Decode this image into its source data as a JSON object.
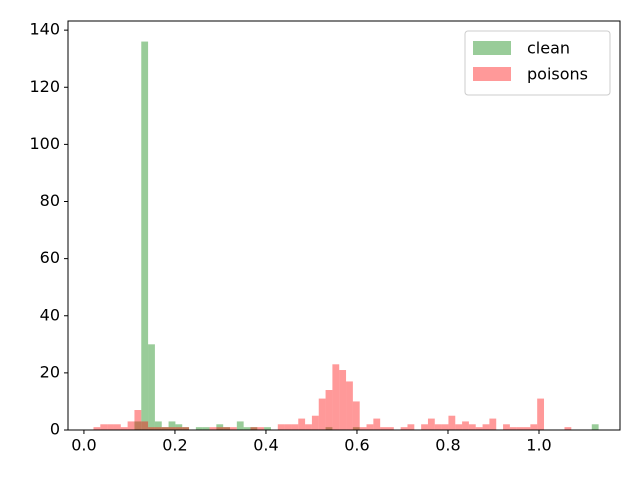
{
  "chart_data": {
    "type": "histogram",
    "bins": [
      0.021,
      0.036,
      0.051,
      0.066,
      0.081,
      0.096,
      0.111,
      0.126,
      0.141,
      0.156,
      0.171,
      0.186,
      0.201,
      0.216,
      0.231,
      0.246,
      0.261,
      0.276,
      0.291,
      0.306,
      0.321,
      0.336,
      0.351,
      0.366,
      0.381,
      0.396,
      0.411,
      0.426,
      0.441,
      0.456,
      0.471,
      0.486,
      0.501,
      0.516,
      0.531,
      0.546,
      0.561,
      0.576,
      0.591,
      0.606,
      0.621,
      0.636,
      0.651,
      0.666,
      0.681,
      0.696,
      0.711,
      0.726,
      0.741,
      0.756,
      0.771,
      0.786,
      0.801,
      0.816,
      0.831,
      0.846,
      0.861,
      0.876,
      0.891,
      0.906,
      0.921,
      0.936,
      0.951,
      0.966,
      0.981,
      0.996,
      1.011,
      1.026,
      1.041,
      1.056,
      1.071,
      1.086,
      1.101,
      1.116,
      1.131
    ],
    "series": [
      {
        "name": "clean",
        "color": "green",
        "alpha": 0.4,
        "values": [
          0,
          0,
          0,
          0,
          0,
          0,
          3,
          136,
          30,
          3,
          1,
          3,
          2,
          1,
          0,
          1,
          1,
          0,
          2,
          1,
          0,
          3,
          1,
          1,
          0,
          1,
          0,
          0,
          0,
          0,
          0,
          0,
          0,
          0,
          1,
          0,
          0,
          0,
          1,
          0,
          0,
          0,
          0,
          0,
          0,
          0,
          0,
          0,
          0,
          0,
          0,
          0,
          0,
          0,
          0,
          0,
          0,
          0,
          0,
          0,
          0,
          0,
          0,
          0,
          0,
          0,
          0,
          0,
          0,
          0,
          0,
          0,
          0,
          2
        ]
      },
      {
        "name": "poisons",
        "color": "red",
        "alpha": 0.4,
        "values": [
          1,
          2,
          2,
          2,
          1,
          3,
          7,
          3,
          1,
          1,
          1,
          1,
          1,
          1,
          0,
          0,
          0,
          1,
          1,
          1,
          1,
          0,
          0,
          1,
          1,
          0,
          0,
          2,
          2,
          2,
          4,
          2,
          5,
          11,
          14,
          23,
          21,
          17,
          10,
          1,
          2,
          4,
          1,
          1,
          0,
          1,
          2,
          0,
          2,
          4,
          2,
          2,
          5,
          2,
          3,
          2,
          1,
          2,
          4,
          0,
          2,
          1,
          1,
          1,
          2,
          11,
          0,
          0,
          0,
          1,
          0,
          0,
          0,
          0
        ]
      }
    ],
    "xlim": [
      -0.035,
      1.178
    ],
    "xticks": [
      {
        "value": 0,
        "label": "0.0"
      },
      {
        "value": 0.2,
        "label": "0.2"
      },
      {
        "value": 0.4,
        "label": "0.4"
      },
      {
        "value": 0.6,
        "label": "0.6"
      },
      {
        "value": 0.8,
        "label": "0.8"
      },
      {
        "value": 1,
        "label": "1.0"
      }
    ],
    "ylim": [
      0,
      143.2
    ],
    "yticks": [
      0,
      20,
      40,
      60,
      80,
      100,
      120,
      140
    ],
    "legend": "upper right"
  }
}
